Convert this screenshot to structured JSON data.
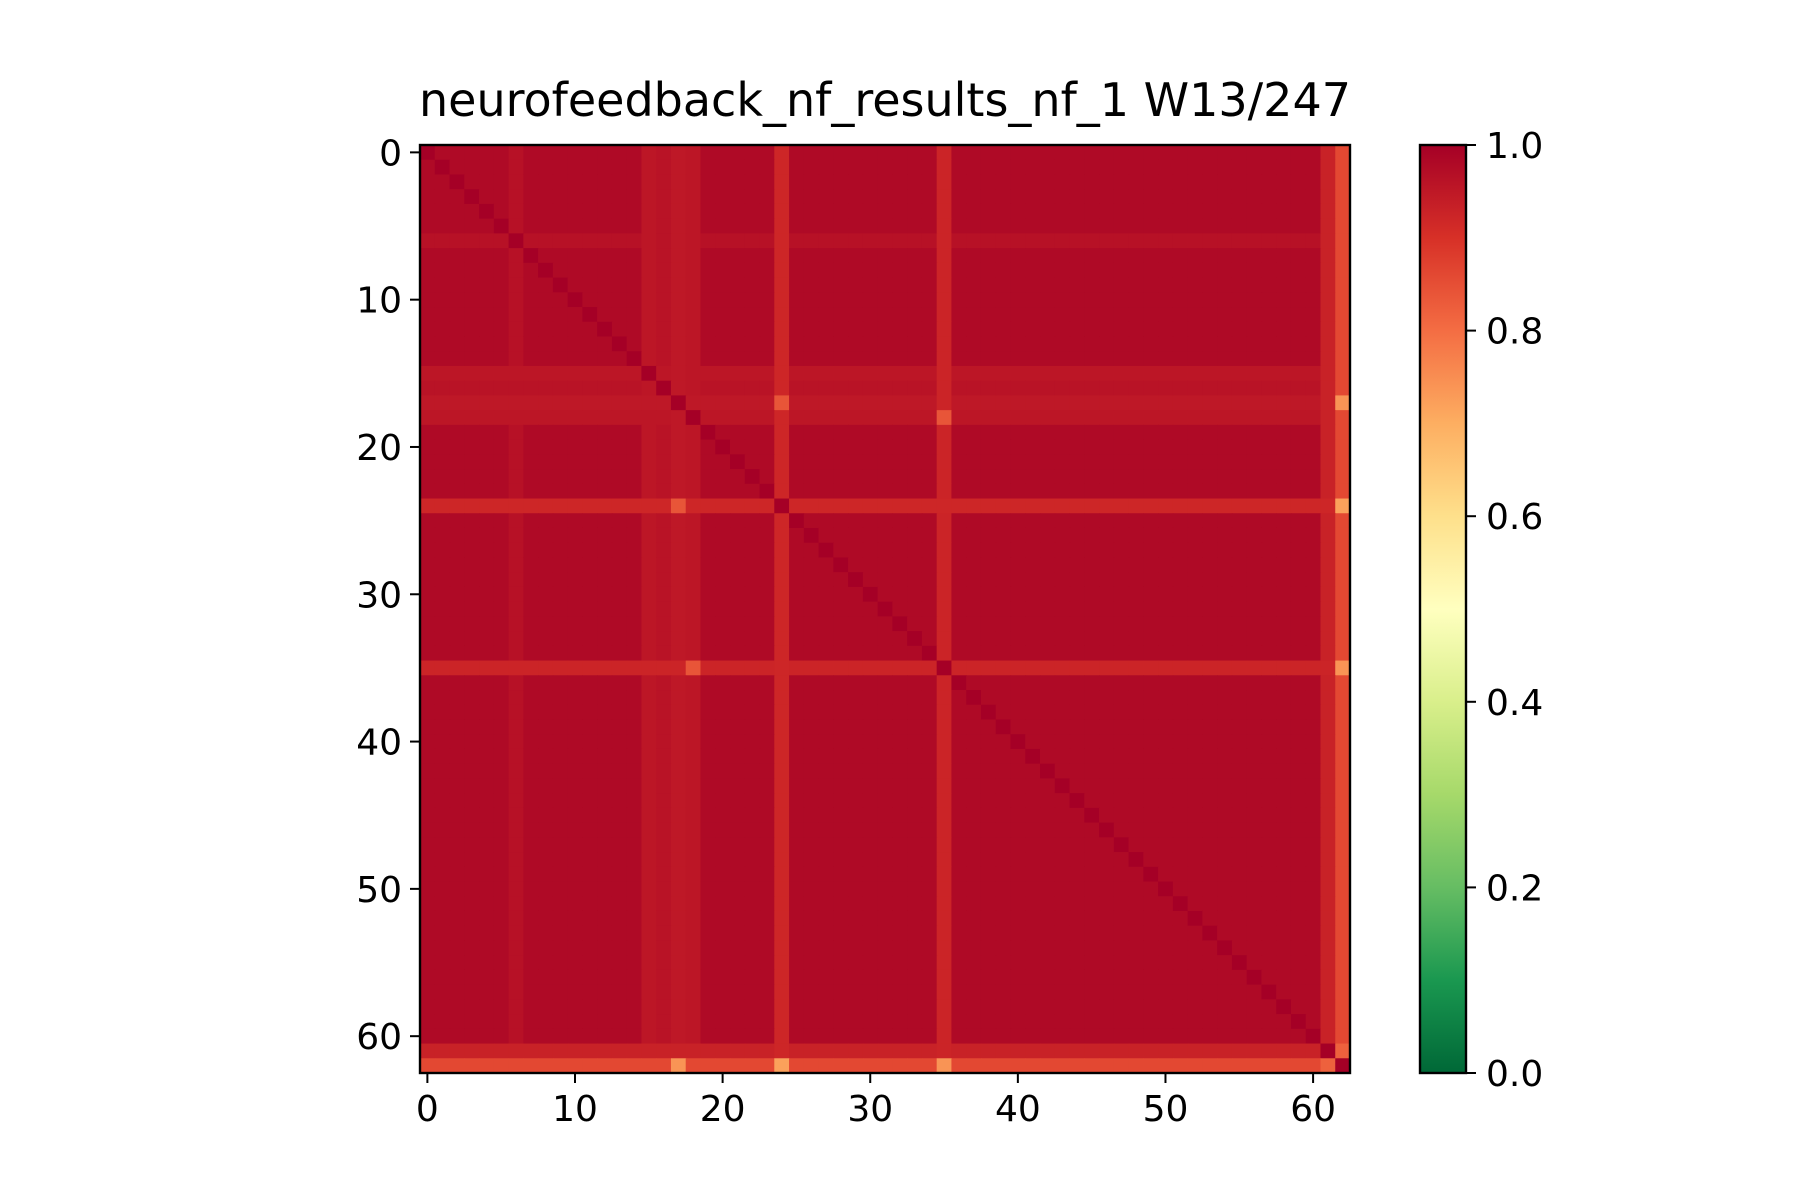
{
  "chart_data": {
    "type": "heatmap",
    "title": "neurofeedback_nf_results_nf_1 W13/247",
    "xlabel": "",
    "ylabel": "",
    "size": 63,
    "x_ticks": [
      0,
      10,
      20,
      30,
      40,
      50,
      60
    ],
    "y_ticks": [
      0,
      10,
      20,
      30,
      40,
      50,
      60
    ],
    "xlim": [
      -0.5,
      62.5
    ],
    "ylim": [
      62.5,
      -0.5
    ],
    "colormap": "RdYlGn_r",
    "colormap_stops": [
      "#006837",
      "#1a9850",
      "#66bd63",
      "#a6d96a",
      "#d9ef8b",
      "#ffffbf",
      "#fee08b",
      "#fdae61",
      "#f46d43",
      "#d73027",
      "#a50026"
    ],
    "vmin": 0.0,
    "vmax": 1.0,
    "colorbar_ticks": [
      0.0,
      0.2,
      0.4,
      0.6,
      0.8,
      1.0
    ],
    "colorbar_tick_labels": [
      "0.0",
      "0.2",
      "0.4",
      "0.6",
      "0.8",
      "1.0"
    ],
    "default_value": 0.98,
    "row_col_values": {
      "6": 0.965,
      "15": 0.955,
      "16": 0.96,
      "17": 0.95,
      "18": 0.955,
      "24": 0.92,
      "35": 0.925,
      "61": 0.93,
      "62": 0.86
    },
    "special_cells": [
      {
        "row": 62,
        "col": 62,
        "value": 1.0
      },
      {
        "row": 62,
        "col": 61,
        "value": 0.82
      },
      {
        "row": 61,
        "col": 62,
        "value": 0.82
      },
      {
        "row": 24,
        "col": 62,
        "value": 0.72
      },
      {
        "row": 62,
        "col": 24,
        "value": 0.72
      },
      {
        "row": 35,
        "col": 62,
        "value": 0.74
      },
      {
        "row": 62,
        "col": 35,
        "value": 0.74
      },
      {
        "row": 17,
        "col": 62,
        "value": 0.74
      },
      {
        "row": 62,
        "col": 17,
        "value": 0.74
      },
      {
        "row": 24,
        "col": 17,
        "value": 0.84
      },
      {
        "row": 17,
        "col": 24,
        "value": 0.84
      },
      {
        "row": 35,
        "col": 18,
        "value": 0.84
      },
      {
        "row": 18,
        "col": 35,
        "value": 0.84
      },
      {
        "row": 24,
        "col": 24,
        "value": 1.0
      },
      {
        "row": 35,
        "col": 35,
        "value": 1.0
      },
      {
        "row": 17,
        "col": 17,
        "value": 1.0
      },
      {
        "row": 61,
        "col": 61,
        "value": 1.0
      }
    ]
  }
}
